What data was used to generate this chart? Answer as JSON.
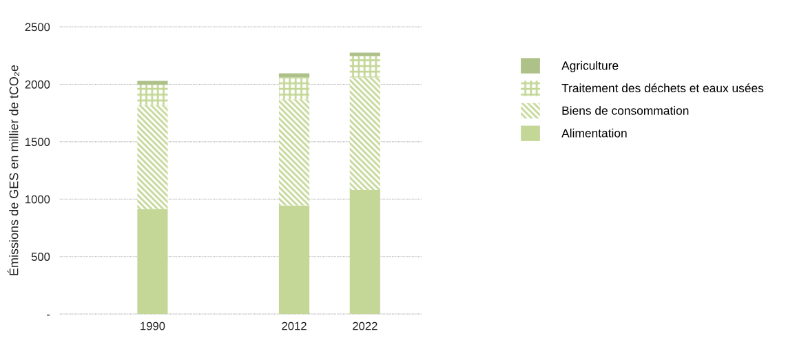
{
  "chart_data": {
    "type": "bar",
    "stacked": true,
    "ylabel": "Émissions de GES en millier de tCO₂e",
    "categories": [
      "1990",
      null,
      "2012",
      "2022"
    ],
    "series": [
      {
        "name": "Alimentation",
        "color": "#c4d797",
        "values": [
          915,
          null,
          945,
          1080
        ]
      },
      {
        "name": "Biens de consommation",
        "color": "#c4d797",
        "values": [
          905,
          null,
          925,
          980
        ]
      },
      {
        "name": "Traitement des déchets et eaux usées",
        "color": "#c4d797",
        "values": [
          175,
          null,
          190,
          185
        ]
      },
      {
        "name": "Agriculture",
        "color": "#adc189",
        "values": [
          35,
          null,
          35,
          30
        ]
      }
    ],
    "ylim": [
      0,
      2500
    ],
    "yticks": [
      {
        "value": 0,
        "label": "-"
      },
      500,
      1000,
      1500,
      2000,
      2500
    ],
    "grid": "y",
    "legend": "right"
  }
}
